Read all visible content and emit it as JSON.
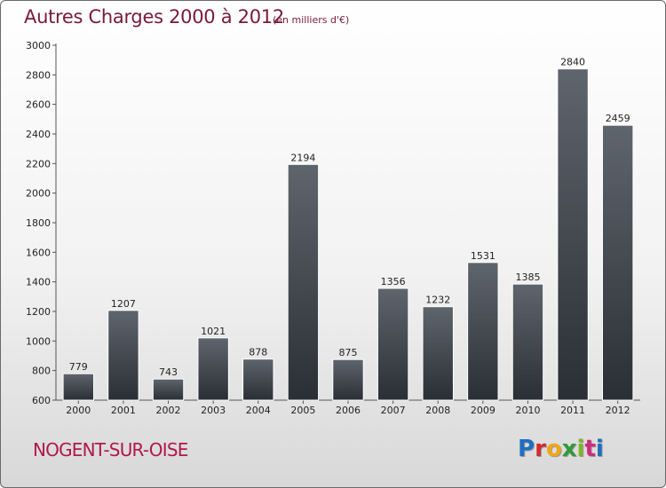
{
  "header": {
    "title": "Autres Charges 2000 à 2012",
    "subtitle": "(en milliers d'€)"
  },
  "footer": {
    "location": "NOGENT-SUR-OISE",
    "brand": "Proxiti",
    "brand_colors": [
      "#1e6fc0",
      "#d62b2b",
      "#f2a516",
      "#2d9b3a",
      "#7fb52c",
      "#cf2a7d",
      "#1e6fc0"
    ]
  },
  "chart_data": {
    "type": "bar",
    "title": "Autres Charges 2000 à 2012",
    "subtitle": "(en milliers d'€)",
    "categories": [
      "2000",
      "2001",
      "2002",
      "2003",
      "2004",
      "2005",
      "2006",
      "2007",
      "2008",
      "2009",
      "2010",
      "2011",
      "2012"
    ],
    "values": [
      779,
      1207,
      743,
      1021,
      878,
      2194,
      875,
      1356,
      1232,
      1531,
      1385,
      2840,
      2459
    ],
    "ylim": [
      600,
      3000
    ],
    "yticks": [
      600,
      800,
      1000,
      1200,
      1400,
      1600,
      1800,
      2000,
      2200,
      2400,
      2600,
      2800,
      3000
    ],
    "grid": false,
    "data_labels": true,
    "bar_color": "#3e444c"
  }
}
